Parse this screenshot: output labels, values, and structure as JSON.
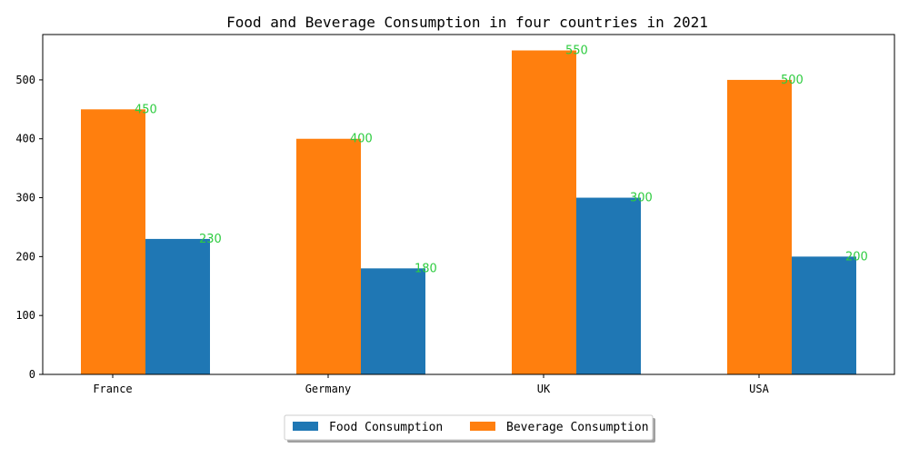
{
  "chart_data": {
    "type": "bar",
    "title": "Food and Beverage Consumption in four countries in 2021",
    "xlabel": "",
    "ylabel": "",
    "categories": [
      "France",
      "Germany",
      "UK",
      "USA"
    ],
    "series": [
      {
        "name": "Beverage Consumption",
        "values": [
          450,
          400,
          550,
          500
        ],
        "color": "#ff7f0e"
      },
      {
        "name": "Food Consumption",
        "values": [
          230,
          180,
          300,
          200
        ],
        "color": "#1f77b4"
      }
    ],
    "ylim": [
      0,
      577
    ],
    "yticks": [
      0,
      100,
      200,
      300,
      400,
      500
    ],
    "data_label_color": "#2ecc40",
    "grid": false,
    "legend": {
      "placement": "bottom-center",
      "entries": [
        {
          "name": "Food Consumption",
          "color": "#1f77b4"
        },
        {
          "name": "Beverage Consumption",
          "color": "#ff7f0e"
        }
      ]
    }
  }
}
